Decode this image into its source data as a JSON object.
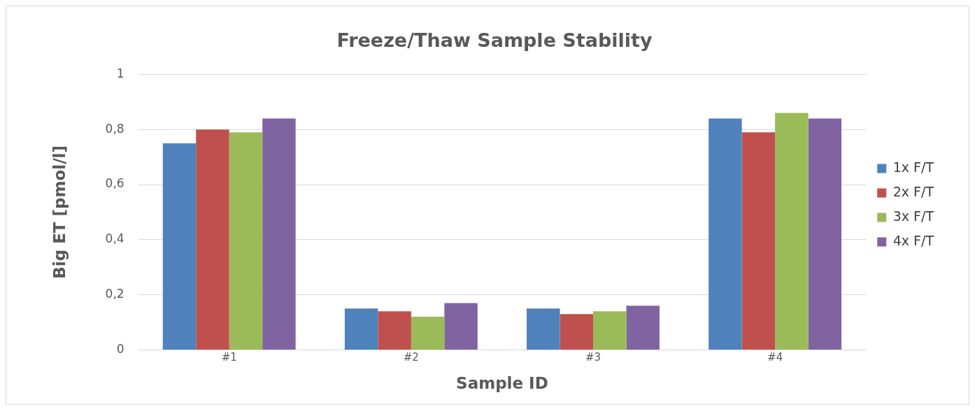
{
  "chart_data": {
    "type": "bar",
    "title": "Freeze/Thaw Sample Stability",
    "xlabel": "Sample ID",
    "ylabel": "Big ET [pmol/l]",
    "categories": [
      "#1",
      "#2",
      "#3",
      "#4"
    ],
    "series": [
      {
        "name": "1x F/T",
        "color": "#4f81bd",
        "values": [
          0.75,
          0.15,
          0.15,
          0.84
        ]
      },
      {
        "name": "2x F/T",
        "color": "#c0504d",
        "values": [
          0.8,
          0.14,
          0.13,
          0.79
        ]
      },
      {
        "name": "3x F/T",
        "color": "#9bbb59",
        "values": [
          0.79,
          0.12,
          0.14,
          0.86
        ]
      },
      {
        "name": "4x F/T",
        "color": "#8064a2",
        "values": [
          0.84,
          0.17,
          0.16,
          0.84
        ]
      }
    ],
    "ylim": [
      0,
      1
    ],
    "yticks": [
      0,
      {
        "value": 0.2,
        "label": "0,2"
      },
      {
        "value": 0.4,
        "label": "0,4"
      },
      {
        "value": 0.6,
        "label": "0,6"
      },
      {
        "value": 0.8,
        "label": "0,8"
      },
      1
    ],
    "grid": "y",
    "legend": "right"
  }
}
